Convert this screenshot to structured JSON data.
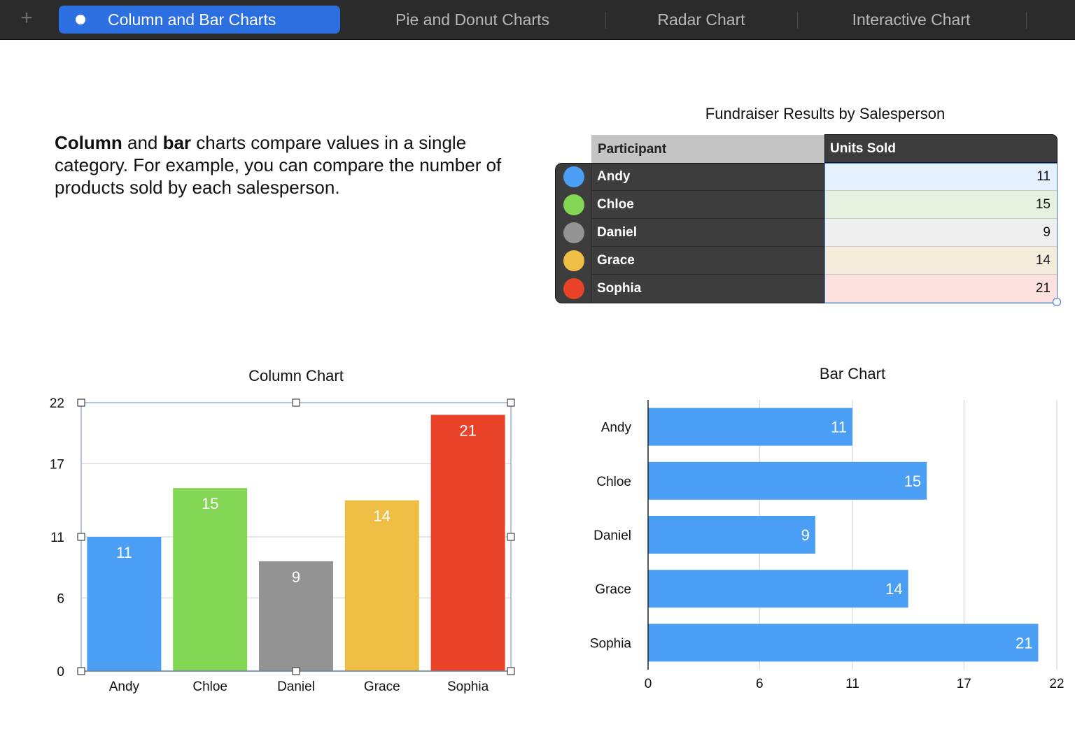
{
  "tabs": {
    "plus_icon": "+",
    "items": [
      {
        "label": "Column and Bar Charts",
        "active": true
      },
      {
        "label": "Pie and Donut Charts"
      },
      {
        "label": "Radar Chart"
      },
      {
        "label": "Interactive Chart"
      }
    ]
  },
  "description": {
    "bold1": "Column",
    "text1": " and ",
    "bold2": "bar",
    "text2": " charts compare values in a single category. For example, you can compare the number of products sold by each salesperson."
  },
  "table": {
    "title": "Fundraiser Results by Salesperson",
    "headers": [
      "Participant",
      "Units Sold"
    ],
    "rows": [
      {
        "name": "Andy",
        "value": "11",
        "color": "#4a9ff5",
        "tint": "#e4f0fd"
      },
      {
        "name": "Chloe",
        "value": "15",
        "color": "#82d654",
        "tint": "#e6f2df"
      },
      {
        "name": "Daniel",
        "value": "9",
        "color": "#939393",
        "tint": "#efefef"
      },
      {
        "name": "Grace",
        "value": "14",
        "color": "#efbe44",
        "tint": "#f5ecdc"
      },
      {
        "name": "Sophia",
        "value": "21",
        "color": "#e84228",
        "tint": "#fde1de"
      }
    ]
  },
  "chart_data": [
    {
      "type": "bar",
      "orientation": "vertical",
      "title": "Column Chart",
      "categories": [
        "Andy",
        "Chloe",
        "Daniel",
        "Grace",
        "Sophia"
      ],
      "values": [
        11,
        15,
        9,
        14,
        21
      ],
      "colors": [
        "#4a9ff5",
        "#82d654",
        "#939393",
        "#efbe44",
        "#e84228"
      ],
      "ylim": [
        0,
        22
      ],
      "yticks": [
        0,
        6,
        11,
        17,
        22
      ],
      "grid": true,
      "data_labels": true
    },
    {
      "type": "bar",
      "orientation": "horizontal",
      "title": "Bar Chart",
      "categories": [
        "Andy",
        "Chloe",
        "Daniel",
        "Grace",
        "Sophia"
      ],
      "values": [
        11,
        15,
        9,
        14,
        21
      ],
      "color": "#4a9ff5",
      "xlim": [
        0,
        22
      ],
      "xticks": [
        0,
        6,
        11,
        17,
        22
      ],
      "grid": true,
      "data_labels": true
    }
  ]
}
